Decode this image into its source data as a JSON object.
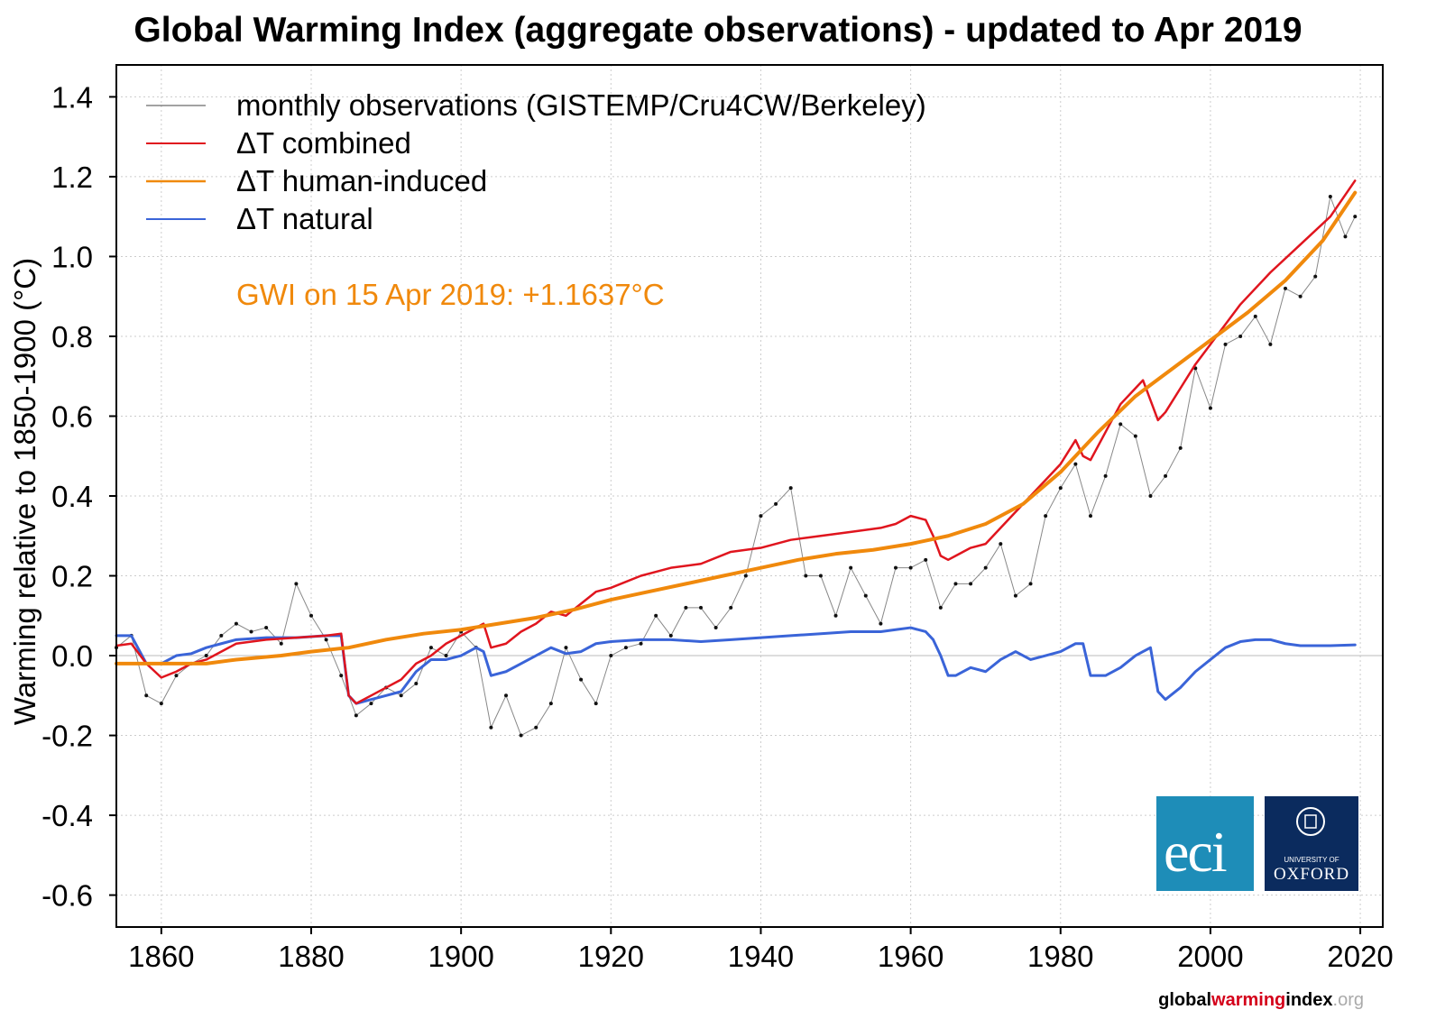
{
  "chart_data": {
    "type": "line",
    "title": "Global Warming Index (aggregate observations) - updated to Apr 2019",
    "ylabel": "Warming relative to 1850-1900 (°C)",
    "xlabel": "",
    "xlim": [
      1854,
      2023
    ],
    "ylim": [
      -0.68,
      1.48
    ],
    "x_ticks": [
      1860,
      1880,
      1900,
      1920,
      1940,
      1960,
      1980,
      2000,
      2020
    ],
    "y_ticks": [
      -0.6,
      -0.4,
      -0.2,
      0.0,
      0.2,
      0.4,
      0.6,
      0.8,
      1.0,
      1.2,
      1.4
    ],
    "grid": true,
    "legend_position": "top-left",
    "annotation": "GWI on 15 Apr 2019: +1.1637°C",
    "series": [
      {
        "name": "monthly observations (GISTEMP/Cru4CW/Berkeley)",
        "color": "#555555",
        "style": "thin-line-with-dots",
        "x": [
          1854,
          1856,
          1858,
          1860,
          1862,
          1864,
          1866,
          1868,
          1870,
          1872,
          1874,
          1876,
          1878,
          1880,
          1882,
          1884,
          1886,
          1888,
          1890,
          1892,
          1894,
          1896,
          1898,
          1900,
          1902,
          1904,
          1906,
          1908,
          1910,
          1912,
          1914,
          1916,
          1918,
          1920,
          1922,
          1924,
          1926,
          1928,
          1930,
          1932,
          1934,
          1936,
          1938,
          1940,
          1942,
          1944,
          1946,
          1948,
          1950,
          1952,
          1954,
          1956,
          1958,
          1960,
          1962,
          1964,
          1966,
          1968,
          1970,
          1972,
          1974,
          1976,
          1978,
          1980,
          1982,
          1984,
          1986,
          1988,
          1990,
          1992,
          1994,
          1996,
          1998,
          2000,
          2002,
          2004,
          2006,
          2008,
          2010,
          2012,
          2014,
          2016,
          2018,
          2019.3
        ],
        "y": [
          0.02,
          0.05,
          -0.1,
          -0.12,
          -0.05,
          -0.02,
          0.0,
          0.05,
          0.08,
          0.06,
          0.07,
          0.03,
          0.18,
          0.1,
          0.04,
          -0.05,
          -0.15,
          -0.12,
          -0.08,
          -0.1,
          -0.07,
          0.02,
          0.0,
          0.06,
          0.02,
          -0.18,
          -0.1,
          -0.2,
          -0.18,
          -0.12,
          0.02,
          -0.06,
          -0.12,
          0.0,
          0.02,
          0.03,
          0.1,
          0.05,
          0.12,
          0.12,
          0.07,
          0.12,
          0.2,
          0.35,
          0.38,
          0.42,
          0.2,
          0.2,
          0.1,
          0.22,
          0.15,
          0.08,
          0.22,
          0.22,
          0.24,
          0.12,
          0.18,
          0.18,
          0.22,
          0.28,
          0.15,
          0.18,
          0.35,
          0.42,
          0.48,
          0.35,
          0.45,
          0.58,
          0.55,
          0.4,
          0.45,
          0.52,
          0.72,
          0.62,
          0.78,
          0.8,
          0.85,
          0.78,
          0.92,
          0.9,
          0.95,
          1.15,
          1.05,
          1.1
        ]
      },
      {
        "name": "ΔT combined",
        "color": "#e0151e",
        "x": [
          1854,
          1856,
          1858,
          1860,
          1862,
          1864,
          1866,
          1868,
          1870,
          1874,
          1878,
          1882,
          1884,
          1885,
          1886,
          1888,
          1890,
          1892,
          1894,
          1896,
          1898,
          1900,
          1902,
          1903,
          1904,
          1906,
          1908,
          1910,
          1912,
          1914,
          1916,
          1918,
          1920,
          1924,
          1928,
          1932,
          1936,
          1940,
          1944,
          1948,
          1952,
          1956,
          1958,
          1960,
          1962,
          1963,
          1964,
          1965,
          1966,
          1968,
          1970,
          1972,
          1976,
          1980,
          1982,
          1983,
          1984,
          1986,
          1988,
          1990,
          1991,
          1992,
          1993,
          1994,
          1996,
          1998,
          2000,
          2004,
          2008,
          2012,
          2016,
          2019.3
        ],
        "y": [
          0.025,
          0.03,
          -0.02,
          -0.055,
          -0.04,
          -0.02,
          -0.01,
          0.01,
          0.03,
          0.04,
          0.045,
          0.05,
          0.055,
          -0.1,
          -0.12,
          -0.1,
          -0.08,
          -0.06,
          -0.02,
          0.0,
          0.03,
          0.05,
          0.07,
          0.08,
          0.02,
          0.03,
          0.06,
          0.08,
          0.11,
          0.1,
          0.13,
          0.16,
          0.17,
          0.2,
          0.22,
          0.23,
          0.26,
          0.27,
          0.29,
          0.3,
          0.31,
          0.32,
          0.33,
          0.35,
          0.34,
          0.3,
          0.25,
          0.24,
          0.25,
          0.27,
          0.28,
          0.32,
          0.4,
          0.48,
          0.54,
          0.5,
          0.49,
          0.56,
          0.63,
          0.67,
          0.69,
          0.64,
          0.59,
          0.61,
          0.67,
          0.73,
          0.78,
          0.88,
          0.96,
          1.03,
          1.1,
          1.19
        ]
      },
      {
        "name": "ΔT human-induced",
        "color": "#f0890c",
        "x": [
          1854,
          1860,
          1866,
          1870,
          1876,
          1880,
          1885,
          1890,
          1895,
          1900,
          1905,
          1910,
          1915,
          1920,
          1925,
          1930,
          1935,
          1940,
          1945,
          1950,
          1955,
          1960,
          1965,
          1970,
          1975,
          1980,
          1985,
          1990,
          1995,
          2000,
          2005,
          2010,
          2015,
          2019.3
        ],
        "y": [
          -0.02,
          -0.02,
          -0.02,
          -0.01,
          0.0,
          0.01,
          0.02,
          0.04,
          0.055,
          0.065,
          0.08,
          0.095,
          0.115,
          0.14,
          0.16,
          0.18,
          0.2,
          0.22,
          0.24,
          0.255,
          0.265,
          0.28,
          0.3,
          0.33,
          0.38,
          0.46,
          0.56,
          0.65,
          0.72,
          0.79,
          0.86,
          0.94,
          1.04,
          1.16
        ]
      },
      {
        "name": "ΔT natural",
        "color": "#3a64d8",
        "x": [
          1854,
          1856,
          1858,
          1860,
          1862,
          1864,
          1866,
          1868,
          1870,
          1874,
          1878,
          1882,
          1884,
          1885,
          1886,
          1888,
          1890,
          1892,
          1894,
          1896,
          1898,
          1900,
          1902,
          1903,
          1904,
          1906,
          1908,
          1910,
          1912,
          1914,
          1916,
          1918,
          1920,
          1924,
          1928,
          1932,
          1936,
          1940,
          1944,
          1948,
          1952,
          1956,
          1958,
          1960,
          1962,
          1963,
          1964,
          1965,
          1966,
          1968,
          1970,
          1972,
          1974,
          1976,
          1978,
          1980,
          1982,
          1983,
          1984,
          1986,
          1988,
          1990,
          1991,
          1992,
          1993,
          1994,
          1996,
          1998,
          2000,
          2002,
          2004,
          2006,
          2008,
          2010,
          2012,
          2016,
          2019.3
        ],
        "y": [
          0.05,
          0.05,
          -0.02,
          -0.02,
          0.0,
          0.005,
          0.02,
          0.03,
          0.04,
          0.045,
          0.045,
          0.05,
          0.05,
          -0.1,
          -0.12,
          -0.11,
          -0.1,
          -0.09,
          -0.04,
          -0.01,
          -0.01,
          0.0,
          0.02,
          0.01,
          -0.05,
          -0.04,
          -0.02,
          0.0,
          0.02,
          0.005,
          0.01,
          0.03,
          0.035,
          0.04,
          0.04,
          0.035,
          0.04,
          0.045,
          0.05,
          0.055,
          0.06,
          0.06,
          0.065,
          0.07,
          0.06,
          0.04,
          0.0,
          -0.05,
          -0.05,
          -0.03,
          -0.04,
          -0.01,
          0.01,
          -0.01,
          0.0,
          0.01,
          0.03,
          0.03,
          -0.05,
          -0.05,
          -0.03,
          0.0,
          0.01,
          0.02,
          -0.09,
          -0.11,
          -0.08,
          -0.04,
          -0.01,
          0.02,
          0.035,
          0.04,
          0.04,
          0.03,
          0.025,
          0.025,
          0.027
        ]
      }
    ]
  },
  "logos": {
    "eci_text": "eci",
    "oxford_small": "UNIVERSITY OF",
    "oxford_big": "OXFORD"
  },
  "footer": {
    "part1": "global",
    "part2": "warming",
    "part3": "index",
    "part4": ".org"
  }
}
